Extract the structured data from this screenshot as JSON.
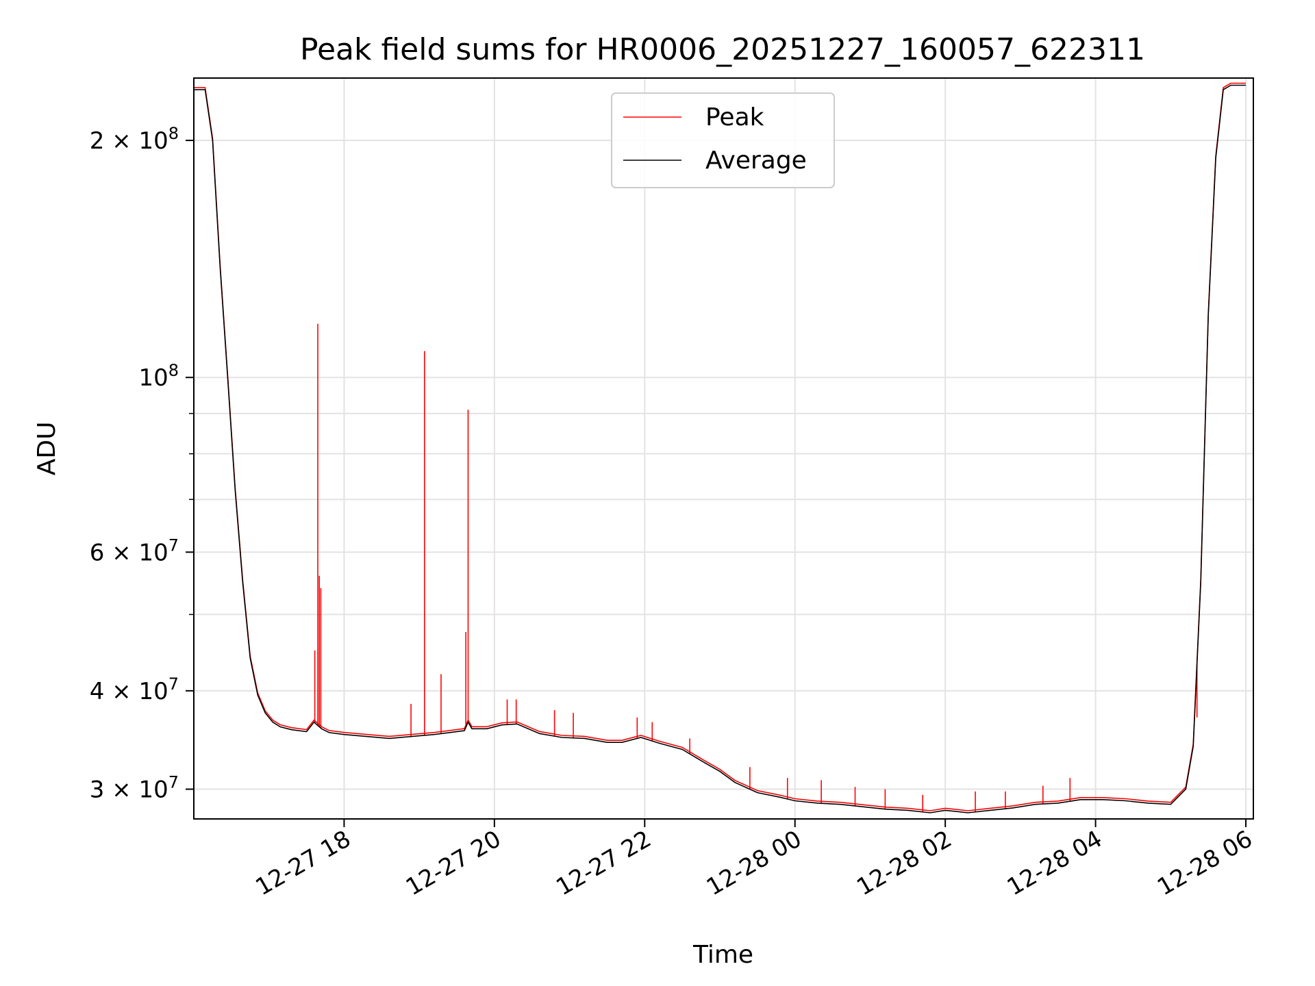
{
  "chart_data": {
    "type": "line",
    "title": "Peak field sums for HR0006_20251227_160057_622311",
    "xlabel": "Time",
    "ylabel": "ADU",
    "yscale": "log",
    "grid": true,
    "legend_position": "upper-center",
    "xlim_hours": [
      16.0,
      30.1
    ],
    "ylim": [
      27500000,
      240000000
    ],
    "x_ticks": [
      {
        "hour": 18,
        "label": "12-27 18"
      },
      {
        "hour": 20,
        "label": "12-27 20"
      },
      {
        "hour": 22,
        "label": "12-27 22"
      },
      {
        "hour": 24,
        "label": "12-28 00"
      },
      {
        "hour": 26,
        "label": "12-28 02"
      },
      {
        "hour": 28,
        "label": "12-28 04"
      },
      {
        "hour": 30,
        "label": "12-28 06"
      }
    ],
    "y_ticks": [
      {
        "value": 30000000,
        "mant": "3",
        "exp": "7"
      },
      {
        "value": 40000000,
        "mant": "4",
        "exp": "7"
      },
      {
        "value": 60000000,
        "mant": "6",
        "exp": "7"
      },
      {
        "value": 100000000,
        "mant": "",
        "exp": "8"
      },
      {
        "value": 200000000,
        "mant": "2",
        "exp": "8"
      }
    ],
    "y_minor_ticks": [
      50000000,
      70000000,
      80000000,
      90000000
    ],
    "series": [
      {
        "name": "Peak",
        "color": "#ff0000",
        "baseline_from": "Average",
        "spikes": [
          {
            "hour": 17.61,
            "value": 45000000
          },
          {
            "hour": 17.65,
            "value": 117000000
          },
          {
            "hour": 17.67,
            "value": 56000000
          },
          {
            "hour": 17.69,
            "value": 54000000
          },
          {
            "hour": 18.89,
            "value": 38500000
          },
          {
            "hour": 19.07,
            "value": 108000000
          },
          {
            "hour": 19.29,
            "value": 42000000
          },
          {
            "hour": 19.62,
            "value": 47500000
          },
          {
            "hour": 19.65,
            "value": 91000000
          },
          {
            "hour": 20.17,
            "value": 39000000
          },
          {
            "hour": 20.29,
            "value": 39000000
          },
          {
            "hour": 20.8,
            "value": 37800000
          },
          {
            "hour": 21.05,
            "value": 37500000
          },
          {
            "hour": 21.9,
            "value": 37000000
          },
          {
            "hour": 22.1,
            "value": 36500000
          },
          {
            "hour": 22.6,
            "value": 34800000
          },
          {
            "hour": 23.4,
            "value": 32000000
          },
          {
            "hour": 23.9,
            "value": 31000000
          },
          {
            "hour": 24.35,
            "value": 30800000
          },
          {
            "hour": 24.8,
            "value": 30200000
          },
          {
            "hour": 25.2,
            "value": 30000000
          },
          {
            "hour": 25.7,
            "value": 29500000
          },
          {
            "hour": 26.4,
            "value": 29800000
          },
          {
            "hour": 26.8,
            "value": 29800000
          },
          {
            "hour": 27.3,
            "value": 30300000
          },
          {
            "hour": 27.66,
            "value": 31000000
          },
          {
            "hour": 29.35,
            "value": 37000000
          }
        ]
      },
      {
        "name": "Average",
        "color": "#000000",
        "x_hours": [
          16.0,
          16.15,
          16.25,
          16.35,
          16.45,
          16.55,
          16.65,
          16.75,
          16.85,
          16.95,
          17.05,
          17.15,
          17.3,
          17.5,
          17.6,
          17.7,
          17.8,
          18.0,
          18.3,
          18.6,
          18.9,
          19.2,
          19.4,
          19.6,
          19.65,
          19.7,
          19.9,
          20.1,
          20.3,
          20.6,
          20.9,
          21.2,
          21.5,
          21.7,
          21.95,
          22.2,
          22.5,
          22.8,
          23.0,
          23.2,
          23.5,
          23.8,
          24.0,
          24.3,
          24.6,
          24.9,
          25.2,
          25.5,
          25.8,
          26.0,
          26.3,
          26.6,
          26.9,
          27.2,
          27.5,
          27.8,
          28.1,
          28.4,
          28.7,
          29.0,
          29.2,
          29.3,
          29.4,
          29.5,
          29.6,
          29.7,
          29.8,
          29.9,
          30.0
        ],
        "values": [
          232000000,
          232000000,
          200000000,
          138000000,
          100000000,
          72000000,
          55000000,
          44000000,
          39500000,
          37500000,
          36500000,
          36000000,
          35700000,
          35500000,
          36500000,
          35800000,
          35400000,
          35200000,
          35000000,
          34800000,
          35000000,
          35200000,
          35400000,
          35600000,
          36500000,
          35800000,
          35800000,
          36200000,
          36300000,
          35300000,
          34900000,
          34800000,
          34400000,
          34400000,
          34900000,
          34300000,
          33700000,
          32400000,
          31600000,
          30600000,
          29700000,
          29300000,
          29000000,
          28800000,
          28700000,
          28500000,
          28300000,
          28200000,
          28000000,
          28200000,
          28000000,
          28200000,
          28400000,
          28700000,
          28800000,
          29100000,
          29100000,
          29000000,
          28800000,
          28700000,
          30000000,
          34000000,
          55000000,
          120000000,
          190000000,
          232000000,
          235000000,
          235000000,
          235000000
        ]
      }
    ]
  }
}
